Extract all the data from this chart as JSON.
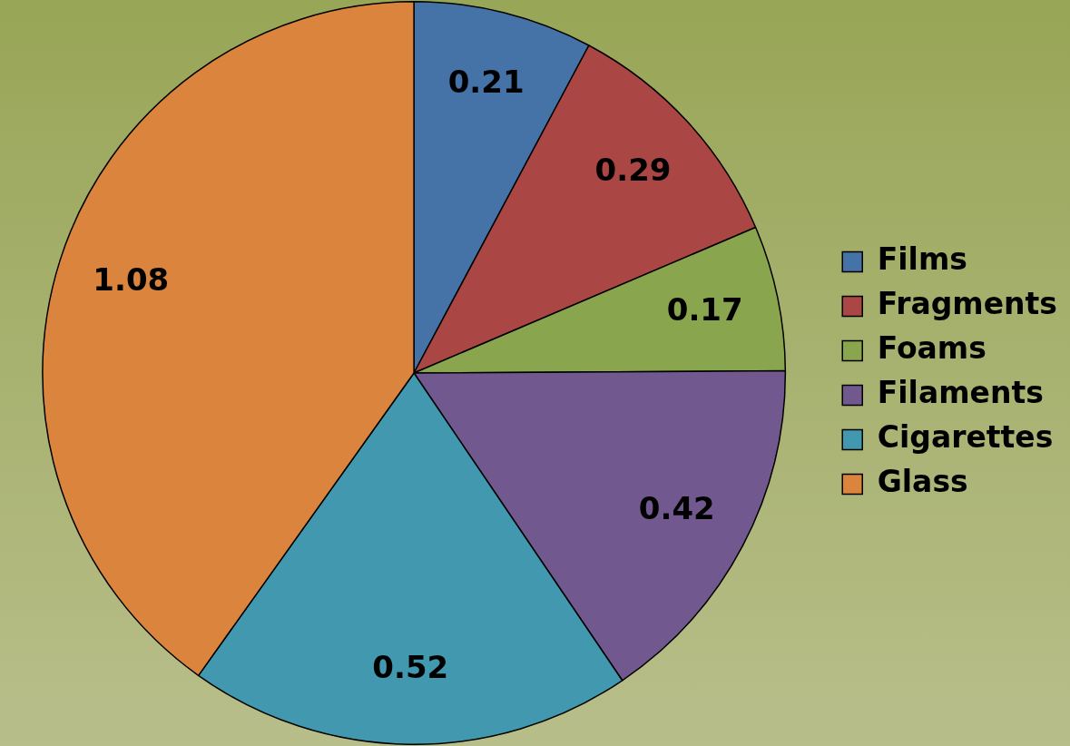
{
  "chart_data": {
    "type": "pie",
    "categories": [
      "Films",
      "Fragments",
      "Foams",
      "Filaments",
      "Cigarettes",
      "Glass"
    ],
    "values": [
      0.21,
      0.29,
      0.17,
      0.42,
      0.52,
      1.08
    ],
    "colors": [
      "#4572a7",
      "#aa4643",
      "#89a54e",
      "#71588f",
      "#4198af",
      "#db843d"
    ],
    "data_labels": true,
    "legend": "right"
  }
}
